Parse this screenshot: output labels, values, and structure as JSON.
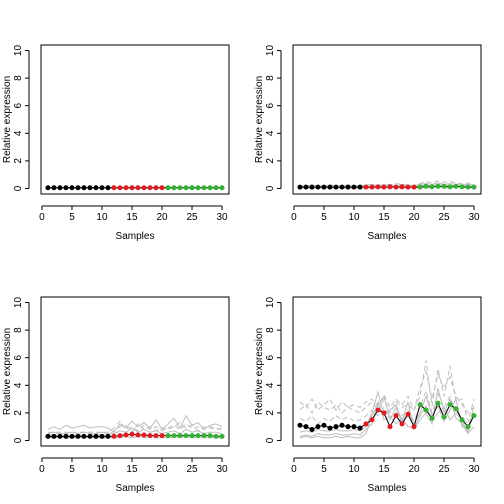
{
  "chart_data": [
    {
      "type": "line",
      "xlabel": "Samples",
      "ylabel": "Relative expression",
      "xlim": [
        1,
        30
      ],
      "ylim": [
        0,
        10
      ],
      "xticks": [
        0,
        5,
        10,
        15,
        20,
        25,
        30
      ],
      "yticks": [
        0,
        2,
        4,
        6,
        8,
        10
      ],
      "main_line_color": "#000000",
      "group_colors": [
        "#000000",
        "#e41a1c",
        "#33b233"
      ],
      "groups": [
        [
          1,
          11
        ],
        [
          12,
          20
        ],
        [
          21,
          30
        ]
      ],
      "x": [
        1,
        2,
        3,
        4,
        5,
        6,
        7,
        8,
        9,
        10,
        11,
        12,
        13,
        14,
        15,
        16,
        17,
        18,
        19,
        20,
        21,
        22,
        23,
        24,
        25,
        26,
        27,
        28,
        29,
        30
      ],
      "main": [
        0.05,
        0.05,
        0.05,
        0.05,
        0.05,
        0.05,
        0.05,
        0.05,
        0.05,
        0.05,
        0.05,
        0.05,
        0.05,
        0.05,
        0.05,
        0.05,
        0.05,
        0.05,
        0.05,
        0.05,
        0.05,
        0.05,
        0.05,
        0.05,
        0.05,
        0.05,
        0.05,
        0.05,
        0.05,
        0.05
      ],
      "background_series": [
        {
          "style": "solid",
          "values": [
            0.03,
            0.03,
            0.03,
            0.03,
            0.03,
            0.03,
            0.03,
            0.03,
            0.03,
            0.03,
            0.03,
            0.03,
            0.03,
            0.03,
            0.03,
            0.03,
            0.03,
            0.03,
            0.03,
            0.03,
            0.03,
            0.03,
            0.03,
            0.03,
            0.03,
            0.03,
            0.03,
            0.03,
            0.03,
            0.03
          ]
        }
      ]
    },
    {
      "type": "line",
      "xlabel": "Samples",
      "ylabel": "Relative expression",
      "xlim": [
        1,
        30
      ],
      "ylim": [
        0,
        10
      ],
      "xticks": [
        0,
        5,
        10,
        15,
        20,
        25,
        30
      ],
      "yticks": [
        0,
        2,
        4,
        6,
        8,
        10
      ],
      "main_line_color": "#000000",
      "group_colors": [
        "#000000",
        "#e41a1c",
        "#33b233"
      ],
      "groups": [
        [
          1,
          11
        ],
        [
          12,
          20
        ],
        [
          21,
          30
        ]
      ],
      "x": [
        1,
        2,
        3,
        4,
        5,
        6,
        7,
        8,
        9,
        10,
        11,
        12,
        13,
        14,
        15,
        16,
        17,
        18,
        19,
        20,
        21,
        22,
        23,
        24,
        25,
        26,
        27,
        28,
        29,
        30
      ],
      "main": [
        0.1,
        0.1,
        0.1,
        0.1,
        0.1,
        0.1,
        0.1,
        0.1,
        0.1,
        0.1,
        0.1,
        0.1,
        0.1,
        0.12,
        0.1,
        0.12,
        0.1,
        0.12,
        0.1,
        0.1,
        0.1,
        0.15,
        0.12,
        0.15,
        0.15,
        0.12,
        0.15,
        0.12,
        0.1,
        0.1
      ],
      "background_series": [
        {
          "style": "solid",
          "values": [
            0.2,
            0.2,
            0.25,
            0.2,
            0.2,
            0.25,
            0.2,
            0.2,
            0.25,
            0.2,
            0.2,
            0.25,
            0.3,
            0.2,
            0.25,
            0.3,
            0.2,
            0.3,
            0.25,
            0.2,
            0.3,
            0.35,
            0.3,
            0.4,
            0.3,
            0.35,
            0.3,
            0.25,
            0.3,
            0.25
          ]
        },
        {
          "style": "solid",
          "values": [
            0.05,
            0.08,
            0.05,
            0.08,
            0.05,
            0.05,
            0.08,
            0.05,
            0.05,
            0.08,
            0.05,
            0.1,
            0.05,
            0.12,
            0.08,
            0.1,
            0.15,
            0.1,
            0.12,
            0.1,
            0.2,
            0.25,
            0.2,
            0.3,
            0.2,
            0.25,
            0.2,
            0.15,
            0.2,
            0.15
          ]
        },
        {
          "style": "dashed",
          "values": [
            0.1,
            0.12,
            0.1,
            0.1,
            0.12,
            0.1,
            0.1,
            0.12,
            0.1,
            0.1,
            0.12,
            0.2,
            0.25,
            0.2,
            0.3,
            0.25,
            0.35,
            0.3,
            0.25,
            0.2,
            0.35,
            0.5,
            0.4,
            0.55,
            0.45,
            0.5,
            0.4,
            0.35,
            0.4,
            0.3
          ]
        },
        {
          "style": "dashed",
          "values": [
            0.05,
            0.05,
            0.05,
            0.05,
            0.05,
            0.05,
            0.05,
            0.05,
            0.05,
            0.05,
            0.05,
            0.05,
            0.05,
            0.05,
            0.05,
            0.05,
            0.05,
            0.05,
            0.05,
            0.05,
            0.05,
            0.05,
            0.05,
            0.05,
            0.05,
            0.05,
            0.05,
            0.05,
            0.05,
            0.05
          ]
        }
      ]
    },
    {
      "type": "line",
      "xlabel": "Samples",
      "ylabel": "Relative expression",
      "xlim": [
        1,
        30
      ],
      "ylim": [
        0,
        10
      ],
      "xticks": [
        0,
        5,
        10,
        15,
        20,
        25,
        30
      ],
      "yticks": [
        0,
        2,
        4,
        6,
        8,
        10
      ],
      "main_line_color": "#000000",
      "group_colors": [
        "#000000",
        "#e41a1c",
        "#33b233"
      ],
      "groups": [
        [
          1,
          11
        ],
        [
          12,
          20
        ],
        [
          21,
          30
        ]
      ],
      "x": [
        1,
        2,
        3,
        4,
        5,
        6,
        7,
        8,
        9,
        10,
        11,
        12,
        13,
        14,
        15,
        16,
        17,
        18,
        19,
        20,
        21,
        22,
        23,
        24,
        25,
        26,
        27,
        28,
        29,
        30
      ],
      "main": [
        0.3,
        0.3,
        0.3,
        0.3,
        0.3,
        0.3,
        0.3,
        0.3,
        0.3,
        0.3,
        0.3,
        0.3,
        0.35,
        0.4,
        0.45,
        0.4,
        0.4,
        0.35,
        0.35,
        0.35,
        0.35,
        0.35,
        0.35,
        0.35,
        0.35,
        0.35,
        0.35,
        0.35,
        0.3,
        0.3
      ],
      "background_series": [
        {
          "style": "solid",
          "values": [
            0.8,
            1.0,
            0.8,
            1.1,
            0.9,
            1.0,
            1.1,
            0.9,
            1.0,
            1.0,
            0.9,
            0.6,
            1.2,
            0.9,
            1.4,
            1.0,
            1.3,
            0.9,
            1.5,
            0.8,
            1.2,
            1.6,
            0.9,
            1.8,
            1.1,
            1.3,
            0.8,
            1.1,
            1.2,
            1.0
          ]
        },
        {
          "style": "solid",
          "values": [
            0.5,
            0.6,
            0.5,
            0.5,
            0.6,
            0.5,
            0.6,
            0.5,
            0.5,
            0.6,
            0.5,
            0.5,
            0.7,
            0.6,
            0.9,
            0.6,
            0.8,
            0.6,
            0.7,
            0.5,
            0.6,
            0.7,
            0.5,
            0.8,
            0.6,
            0.7,
            0.5,
            0.6,
            0.6,
            0.5
          ]
        },
        {
          "style": "solid",
          "values": [
            0.2,
            0.2,
            0.25,
            0.2,
            0.2,
            0.2,
            0.25,
            0.2,
            0.2,
            0.2,
            0.2,
            0.2,
            0.2,
            0.3,
            0.2,
            0.3,
            0.2,
            0.25,
            0.2,
            0.2,
            0.2,
            0.25,
            0.2,
            0.3,
            0.2,
            0.25,
            0.2,
            0.2,
            0.2,
            0.2
          ]
        },
        {
          "style": "dashed",
          "values": [
            0.4,
            0.4,
            0.4,
            0.4,
            0.4,
            0.4,
            0.4,
            0.4,
            0.4,
            0.4,
            0.4,
            0.7,
            1.0,
            1.1,
            0.6,
            1.2,
            0.8,
            1.0,
            0.7,
            0.9,
            0.8,
            1.0,
            1.3,
            0.9,
            1.1,
            0.7,
            1.0,
            0.9,
            0.8,
            0.9
          ]
        },
        {
          "style": "dashed",
          "values": [
            0.6,
            0.6,
            0.6,
            0.6,
            0.6,
            0.6,
            0.6,
            0.6,
            0.6,
            0.6,
            0.6,
            0.9,
            1.4,
            0.8,
            1.0,
            0.7,
            1.1,
            0.8,
            1.0,
            0.7,
            0.9,
            1.1,
            0.8,
            1.2,
            0.9,
            1.0,
            0.8,
            1.0,
            0.9,
            0.8
          ]
        }
      ]
    },
    {
      "type": "line",
      "xlabel": "Samples",
      "ylabel": "Relative expression",
      "xlim": [
        1,
        30
      ],
      "ylim": [
        0,
        10
      ],
      "xticks": [
        0,
        5,
        10,
        15,
        20,
        25,
        30
      ],
      "yticks": [
        0,
        2,
        4,
        6,
        8,
        10
      ],
      "main_line_color": "#000000",
      "group_colors": [
        "#000000",
        "#e41a1c",
        "#33b233"
      ],
      "groups": [
        [
          1,
          11
        ],
        [
          12,
          20
        ],
        [
          21,
          30
        ]
      ],
      "x": [
        1,
        2,
        3,
        4,
        5,
        6,
        7,
        8,
        9,
        10,
        11,
        12,
        13,
        14,
        15,
        16,
        17,
        18,
        19,
        20,
        21,
        22,
        23,
        24,
        25,
        26,
        27,
        28,
        29,
        30
      ],
      "main": [
        1.1,
        1.0,
        0.8,
        1.0,
        1.1,
        0.9,
        1.0,
        1.1,
        1.0,
        1.0,
        0.9,
        1.2,
        1.5,
        2.2,
        2.0,
        1.0,
        1.8,
        1.2,
        1.9,
        1.0,
        2.6,
        2.2,
        1.6,
        2.7,
        1.7,
        2.6,
        2.3,
        1.5,
        1.0,
        1.8
      ],
      "background_series": [
        {
          "style": "solid",
          "values": [
            0.2,
            0.3,
            0.2,
            0.3,
            0.2,
            0.2,
            0.3,
            0.2,
            0.3,
            0.2,
            0.2,
            0.5,
            1.8,
            2.5,
            3.2,
            1.5,
            2.4,
            1.3,
            2.8,
            0.8,
            1.5,
            2.0,
            1.2,
            3.8,
            2.0,
            3.0,
            1.6,
            1.2,
            0.5,
            1.0
          ]
        },
        {
          "style": "solid",
          "values": [
            0.6,
            0.7,
            0.6,
            0.8,
            0.7,
            0.7,
            0.8,
            0.7,
            0.7,
            0.8,
            0.7,
            1.0,
            2.0,
            3.5,
            1.8,
            2.2,
            2.6,
            1.4,
            2.0,
            1.2,
            2.0,
            3.2,
            1.8,
            2.5,
            1.4,
            2.2,
            3.0,
            1.0,
            0.8,
            2.5
          ]
        },
        {
          "style": "solid",
          "values": [
            0.3,
            0.4,
            0.3,
            0.5,
            0.4,
            0.4,
            0.5,
            0.4,
            0.4,
            0.5,
            0.4,
            0.8,
            1.2,
            2.8,
            1.5,
            1.8,
            1.2,
            1.6,
            1.0,
            0.9,
            1.8,
            2.5,
            1.5,
            2.0,
            2.4,
            1.5,
            2.0,
            1.4,
            0.6,
            2.0
          ]
        },
        {
          "style": "dashed",
          "values": [
            2.2,
            2.6,
            2.0,
            2.8,
            2.4,
            2.2,
            2.6,
            2.0,
            2.4,
            2.2,
            2.0,
            2.4,
            2.8,
            2.2,
            3.0,
            2.0,
            2.8,
            2.4,
            2.6,
            2.2,
            3.2,
            5.8,
            2.5,
            5.2,
            3.2,
            5.4,
            2.8,
            3.0,
            1.4,
            3.0
          ]
        },
        {
          "style": "dashed",
          "values": [
            2.8,
            2.4,
            3.0,
            2.2,
            2.6,
            3.0,
            2.2,
            2.8,
            2.4,
            2.6,
            2.4,
            2.8,
            3.0,
            2.5,
            3.3,
            2.4,
            3.0,
            2.6,
            3.2,
            2.2,
            3.8,
            5.0,
            3.0,
            4.8,
            3.8,
            4.6,
            3.2,
            2.6,
            2.0,
            2.4
          ]
        },
        {
          "style": "dashed",
          "values": [
            1.6,
            1.4,
            1.8,
            1.2,
            1.6,
            1.4,
            1.8,
            1.5,
            1.7,
            1.4,
            1.5,
            1.8,
            2.2,
            1.8,
            2.4,
            1.6,
            2.0,
            1.8,
            2.2,
            1.4,
            2.4,
            3.6,
            2.0,
            3.4,
            2.4,
            3.2,
            2.0,
            1.6,
            1.2,
            1.8
          ]
        }
      ]
    }
  ]
}
